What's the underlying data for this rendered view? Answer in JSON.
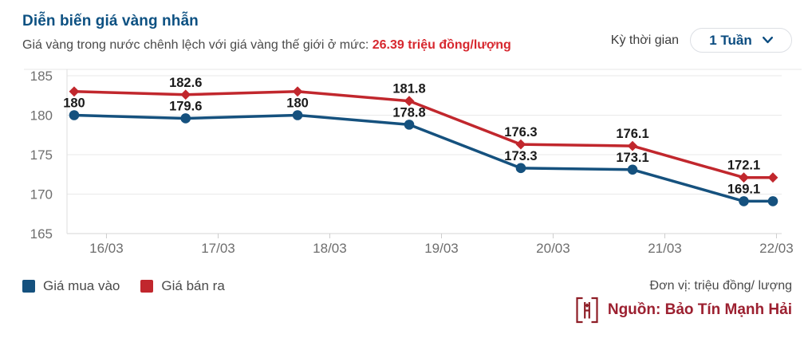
{
  "header": {
    "title": "Diễn biến giá vàng nhẫn",
    "subtitle_text": "Giá vàng trong nước chênh lệch với giá vàng thế giới ở mức:",
    "subtitle_value": "26.39 triệu đồng/lượng"
  },
  "period": {
    "label": "Kỳ thời gian",
    "selected": "1 Tuần",
    "chevron_icon": "chevron-down"
  },
  "footer": {
    "unit_note": "Đơn vị: triệu đồng/ lượng",
    "source_label": "Nguồn: Bảo Tín Mạnh Hải",
    "logo_icon": "bao-tin-manh-hai-logo"
  },
  "colors": {
    "title_blue": "#0d5182",
    "highlight_red": "#d7282f",
    "buy_blue": "#15517e",
    "sell_red": "#c1272d",
    "source_red": "#9c2030",
    "axis_text": "#6e6e6e",
    "gridline": "#e9e9e9"
  },
  "chart_data": {
    "type": "line",
    "x_tick_labels": [
      "16/03",
      "17/03",
      "18/03",
      "19/03",
      "20/03",
      "21/03",
      "22/03"
    ],
    "x_tick_positions": [
      0.0552,
      0.2115,
      0.3677,
      0.524,
      0.6802,
      0.8365,
      0.9927
    ],
    "point_x_positions": [
      0.01,
      0.166,
      0.3226,
      0.4788,
      0.635,
      0.7913,
      0.947,
      0.9877
    ],
    "y_ticks": [
      165,
      170,
      175,
      180,
      185
    ],
    "ylim": [
      165,
      185
    ],
    "grid": "horizontal-only",
    "legend_position": "bottom-left",
    "series": [
      {
        "name": "Giá mua vào",
        "color": "#15517e",
        "marker": "circle",
        "values": [
          180,
          179.6,
          180,
          178.8,
          173.3,
          173.1,
          169.1,
          169.1
        ],
        "labels": [
          "180",
          "179.6",
          "180",
          "178.8",
          "173.3",
          "173.1",
          "169.1",
          ""
        ]
      },
      {
        "name": "Giá bán ra",
        "color": "#c1272d",
        "marker": "diamond",
        "values": [
          183,
          182.6,
          183,
          181.8,
          176.3,
          176.1,
          172.1,
          172.1
        ],
        "labels": [
          "",
          "182.6",
          "",
          "181.8",
          "176.3",
          "176.1",
          "172.1",
          ""
        ]
      }
    ]
  }
}
